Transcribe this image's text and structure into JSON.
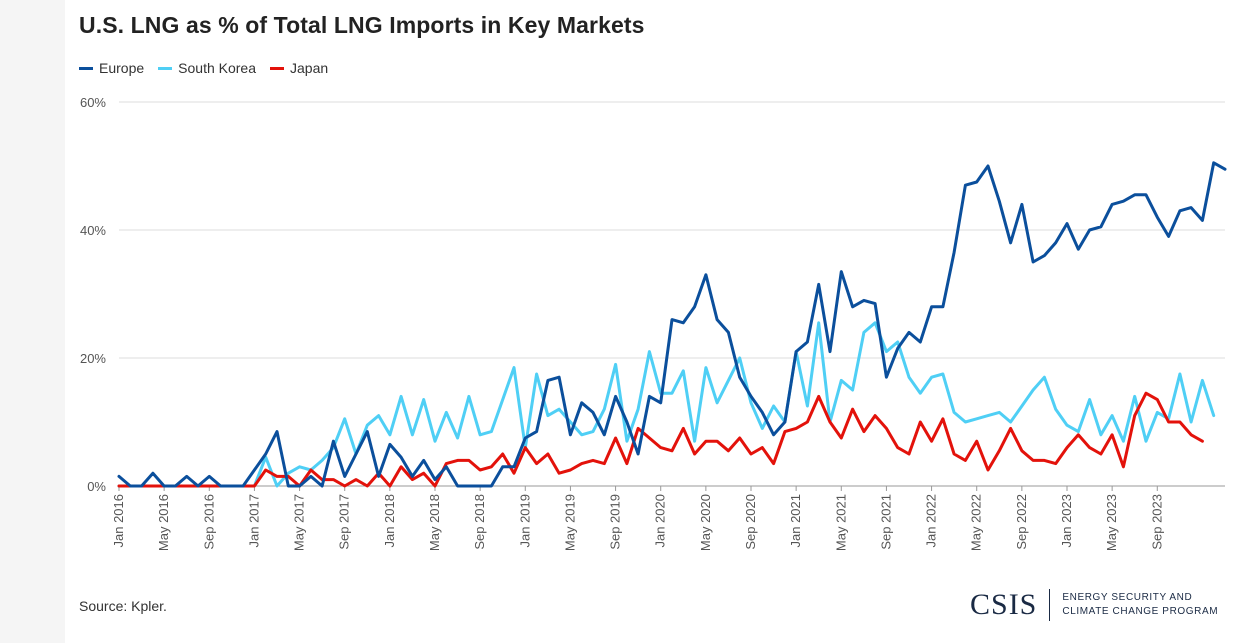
{
  "chart_data": {
    "type": "line",
    "title": "U.S. LNG as % of Total LNG Imports in Key Markets",
    "xlabel": "",
    "ylabel": "",
    "ylim": [
      0,
      60
    ],
    "y_ticks": [
      "0%",
      "20%",
      "40%",
      "60%"
    ],
    "y_tick_values": [
      0,
      20,
      40,
      60
    ],
    "grid": true,
    "legend_position": "top-left",
    "x_tick_labels": [
      "Jan 2016",
      "May 2016",
      "Sep 2016",
      "Jan 2017",
      "May 2017",
      "Sep 2017",
      "Jan 2018",
      "May 2018",
      "Sep 2018",
      "Jan 2019",
      "May 2019",
      "Sep 2019",
      "Jan 2020",
      "May 2020",
      "Sep 2020",
      "Jan 2021",
      "May 2021",
      "Sep 2021",
      "Jan 2022",
      "May 2022",
      "Sep 2022",
      "Jan 2023",
      "May 2023",
      "Sep 2023"
    ],
    "x_tick_indices": [
      0,
      4,
      8,
      12,
      16,
      20,
      24,
      28,
      32,
      36,
      40,
      44,
      48,
      52,
      56,
      60,
      64,
      68,
      72,
      76,
      80,
      84,
      88,
      92
    ],
    "x_start": "Jan 2016",
    "x_end": "Dec 2023",
    "series": [
      {
        "name": "Europe",
        "color": "#0b4f9c",
        "values": [
          1.5,
          0,
          0,
          2,
          0,
          0,
          1.5,
          0,
          1.5,
          0,
          0,
          0,
          2.5,
          5,
          8.5,
          0,
          0,
          1.5,
          0,
          7,
          1.5,
          5,
          8.5,
          1.5,
          6.5,
          4.5,
          1.5,
          4,
          1,
          3,
          0,
          0,
          0,
          0,
          3,
          3,
          7.5,
          8.5,
          16.5,
          17,
          8,
          13,
          11.5,
          8,
          14,
          10,
          5,
          14,
          13,
          26,
          25.5,
          28,
          33,
          26,
          24,
          17,
          14,
          11.5,
          8,
          10,
          21,
          22.5,
          31.5,
          21,
          33.5,
          28,
          29,
          28.5,
          17,
          21.5,
          24,
          22.5,
          28,
          28,
          36.5,
          47,
          47.5,
          50,
          44.5,
          38,
          44,
          35,
          36,
          38,
          41,
          37,
          40,
          40.5,
          44,
          44.5,
          45.5,
          45.5,
          42,
          39,
          43,
          43.5,
          41.5,
          50.5,
          49.5
        ]
      },
      {
        "name": "South Korea",
        "color": "#4fcff5",
        "values": [
          0,
          0,
          0,
          0,
          0,
          0,
          0,
          0,
          0,
          0,
          0,
          0,
          0,
          4.5,
          0,
          2,
          3,
          2.5,
          4,
          6,
          10.5,
          5,
          9.5,
          11,
          8,
          14,
          8,
          13.5,
          7,
          11.5,
          7.5,
          14,
          8,
          8.5,
          13.5,
          18.5,
          6,
          17.5,
          11,
          12,
          10,
          8,
          8.5,
          12,
          19,
          7,
          12,
          21,
          14.5,
          14.5,
          18,
          7,
          18.5,
          13,
          16.5,
          20,
          13,
          9,
          12.5,
          10,
          21,
          12.5,
          25.5,
          10,
          16.5,
          15,
          24,
          25.5,
          21,
          22.5,
          17,
          14.5,
          17,
          17.5,
          11.5,
          10,
          10.5,
          11,
          11.5,
          10,
          12.5,
          15,
          17,
          12,
          9.5,
          8.5,
          13.5,
          8,
          11,
          7,
          14,
          7,
          11.5,
          10.5,
          17.5,
          10,
          16.5,
          11
        ]
      },
      {
        "name": "Japan",
        "color": "#e3120b",
        "values": [
          0,
          0,
          0,
          0,
          0,
          0,
          0,
          0,
          0,
          0,
          0,
          0,
          0,
          2.5,
          1.5,
          1.5,
          0,
          2.5,
          1,
          1,
          0,
          1,
          0,
          2,
          0,
          3,
          1,
          2,
          0,
          3.5,
          4,
          4,
          2.5,
          3,
          5,
          2,
          6,
          3.5,
          5,
          2,
          2.5,
          3.5,
          4,
          3.5,
          7.5,
          3.5,
          9,
          7.5,
          6,
          5.5,
          9,
          5,
          7,
          7,
          5.5,
          7.5,
          5,
          6,
          3.5,
          8.5,
          9,
          10,
          14,
          10,
          7.5,
          12,
          8.5,
          11,
          9,
          6,
          5,
          10,
          7,
          10.5,
          5,
          4,
          7,
          2.5,
          5.5,
          9,
          5.5,
          4,
          4,
          3.5,
          6,
          8,
          6,
          5,
          8,
          3,
          11,
          14.5,
          13.5,
          10,
          10,
          8,
          7
        ]
      }
    ]
  },
  "legend": {
    "items": [
      {
        "label": "Europe",
        "color": "#0b4f9c"
      },
      {
        "label": "South Korea",
        "color": "#4fcff5"
      },
      {
        "label": "Japan",
        "color": "#e3120b"
      }
    ]
  },
  "footer": {
    "source": "Source: Kpler.",
    "logo_text": "CSIS",
    "program_line1": "ENERGY SECURITY AND",
    "program_line2": "CLIMATE CHANGE PROGRAM"
  }
}
